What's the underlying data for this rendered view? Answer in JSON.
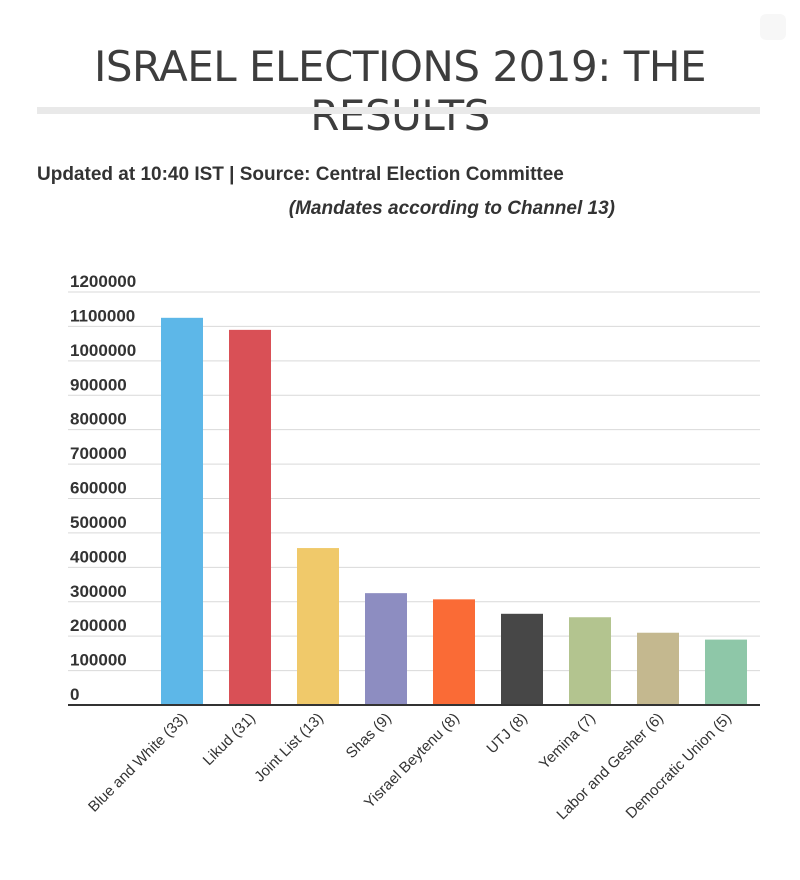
{
  "header": {
    "title": "ISRAEL ELECTIONS 2019: THE RESULTS",
    "subtitle": "Updated at 10:40 IST | Source: Central Election Committee",
    "note": "(Mandates according to Channel 13)"
  },
  "chart_data": {
    "type": "bar",
    "title": "ISRAEL ELECTIONS 2019: THE RESULTS",
    "xlabel": "",
    "ylabel": "",
    "ylim": [
      0,
      1200000
    ],
    "yticks": [
      0,
      100000,
      200000,
      300000,
      400000,
      500000,
      600000,
      700000,
      800000,
      900000,
      1000000,
      1100000,
      1200000
    ],
    "grid": true,
    "legend": "none",
    "categories": [
      "Blue and White (33)",
      "Likud (31)",
      "Joint List (13)",
      "Shas (9)",
      "Yisrael Beytenu (8)",
      "UTJ (8)",
      "Yemina (7)",
      "Labor and Gesher (6)",
      "Democratic Union (5)"
    ],
    "values": [
      1125000,
      1090000,
      456000,
      325000,
      307000,
      265000,
      255000,
      210000,
      190000
    ],
    "colors": [
      "#5db7e8",
      "#d95056",
      "#f0c96a",
      "#8d8dc1",
      "#fa6b36",
      "#474747",
      "#b3c48f",
      "#c4b88f",
      "#8ec7a8"
    ]
  }
}
